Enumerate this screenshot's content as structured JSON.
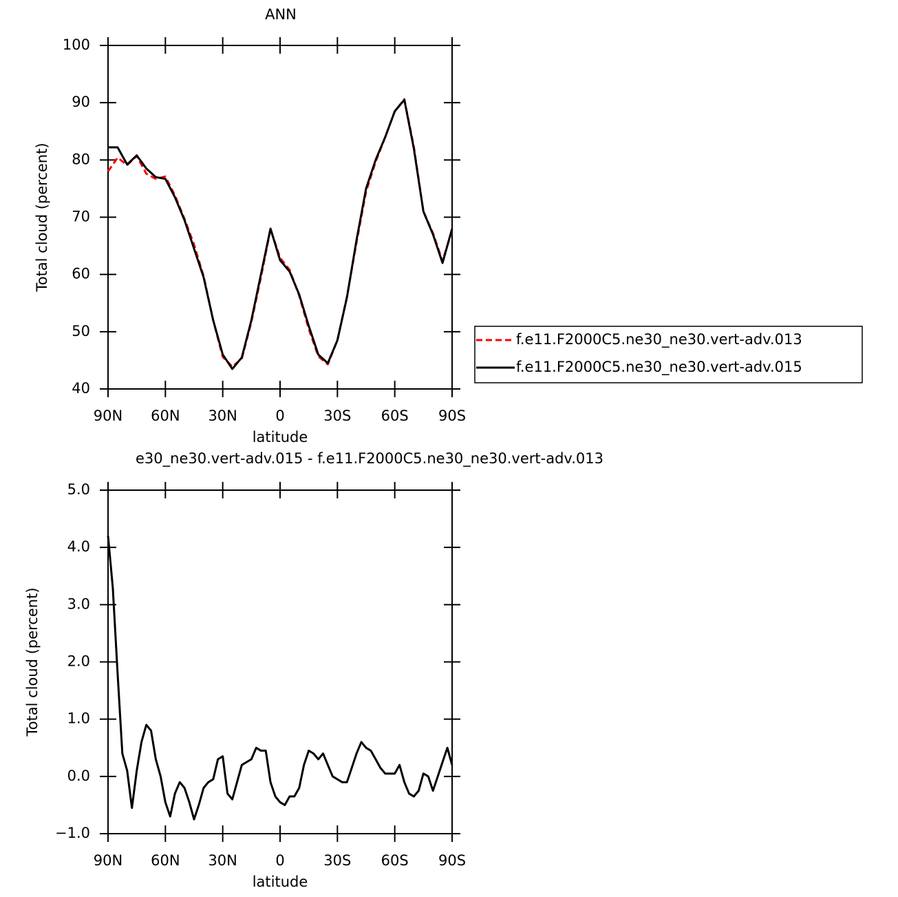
{
  "chart_data": [
    {
      "type": "line",
      "title": "ANN",
      "x_label": "latitude",
      "y_label": "Total cloud (percent)",
      "x": [
        90,
        85,
        80,
        75,
        70,
        65,
        60,
        55,
        50,
        45,
        40,
        35,
        30,
        25,
        20,
        15,
        10,
        5,
        0,
        -5,
        -10,
        -15,
        -20,
        -25,
        -30,
        -35,
        -40,
        -45,
        -50,
        -55,
        -60,
        -65,
        -70,
        -75,
        -80,
        -85,
        -90
      ],
      "series": [
        {
          "name": "f.e11.F2000C5.ne30_ne30.vert-adv.013",
          "color": "#ff0000",
          "line_style": "dashed",
          "values": [
            78,
            80.4,
            79.1,
            80.7,
            77.6,
            76.7,
            77.1,
            73.8,
            69.7,
            65.2,
            59.7,
            52,
            45.6,
            43.9,
            45.3,
            51.7,
            59.5,
            67.9,
            62.9,
            60.8,
            56.3,
            50.5,
            45.7,
            44.3,
            48.5,
            56.1,
            65.6,
            74.5,
            79.7,
            84,
            88.5,
            90.6,
            82.3,
            71,
            67.2,
            62.3,
            67.8
          ]
        },
        {
          "name": "f.e11.F2000C5.ne30_ne30.vert-adv.015",
          "color": "#000000",
          "line_style": "solid",
          "values": [
            82.2,
            82.2,
            79.2,
            80.8,
            78.5,
            77,
            76.7,
            73.5,
            69.5,
            64.5,
            59.5,
            52,
            46,
            43.5,
            45.5,
            52,
            60,
            68,
            62.5,
            60.5,
            56.5,
            51,
            46,
            44.5,
            48.5,
            56,
            66,
            75,
            80,
            84,
            88.5,
            90.5,
            82,
            71,
            67,
            62,
            68
          ]
        }
      ],
      "xlim": [
        90,
        -90
      ],
      "xticks": [
        {
          "value": 90,
          "label": "90N"
        },
        {
          "value": 60,
          "label": "60N"
        },
        {
          "value": 30,
          "label": "30N"
        },
        0,
        {
          "value": -30,
          "label": "30S"
        },
        {
          "value": -60,
          "label": "60S"
        },
        {
          "value": -90,
          "label": "90S"
        }
      ],
      "ylim": [
        40,
        100
      ],
      "yticks": [
        40,
        50,
        60,
        70,
        80,
        90,
        100
      ],
      "legend": "right"
    },
    {
      "type": "line",
      "title": "e30_ne30.vert-adv.015 - f.e11.F2000C5.ne30_ne30.vert-adv.013",
      "x_label": "latitude",
      "y_label": "Total cloud (percent)",
      "x": [
        90,
        87.5,
        85,
        82.5,
        80,
        77.5,
        75,
        72.5,
        70,
        67.5,
        65,
        62.5,
        60,
        57.5,
        55,
        52.5,
        50,
        47.5,
        45,
        42.5,
        40,
        37.5,
        35,
        32.5,
        30,
        27.5,
        25,
        22.5,
        20,
        17.5,
        15,
        12.5,
        10,
        7.5,
        5,
        2.5,
        0,
        -2.5,
        -5,
        -7.5,
        -10,
        -12.5,
        -15,
        -17.5,
        -20,
        -22.5,
        -25,
        -27.5,
        -30,
        -32.5,
        -35,
        -37.5,
        -40,
        -42.5,
        -45,
        -47.5,
        -50,
        -52.5,
        -55,
        -57.5,
        -60,
        -62.5,
        -65,
        -67.5,
        -70,
        -72.5,
        -75,
        -77.5,
        -80,
        -82.5,
        -85,
        -87.5,
        -90
      ],
      "values": [
        4.2,
        3.3,
        1.8,
        0.4,
        0.1,
        -0.55,
        0.1,
        0.6,
        0.9,
        0.8,
        0.3,
        0,
        -0.45,
        -0.7,
        -0.3,
        -0.1,
        -0.2,
        -0.45,
        -0.75,
        -0.5,
        -0.2,
        -0.1,
        -0.05,
        0.3,
        0.35,
        -0.3,
        -0.4,
        -0.1,
        0.2,
        0.25,
        0.3,
        0.5,
        0.45,
        0.45,
        -0.1,
        -0.35,
        -0.45,
        -0.5,
        -0.35,
        -0.35,
        -0.2,
        0.2,
        0.45,
        0.4,
        0.3,
        0.4,
        0.2,
        0,
        -0.05,
        -0.1,
        -0.1,
        0.15,
        0.4,
        0.6,
        0.5,
        0.45,
        0.3,
        0.15,
        0.05,
        0.05,
        0.05,
        0.2,
        -0.1,
        -0.3,
        -0.35,
        -0.25,
        0.05,
        0,
        -0.25,
        0,
        0.25,
        0.5,
        0.2
      ],
      "color": "#000000",
      "xlim": [
        90,
        -90
      ],
      "xticks": [
        {
          "value": 90,
          "label": "90N"
        },
        {
          "value": 60,
          "label": "60N"
        },
        {
          "value": 30,
          "label": "30N"
        },
        0,
        {
          "value": -30,
          "label": "30S"
        },
        {
          "value": -60,
          "label": "60S"
        },
        {
          "value": -90,
          "label": "90S"
        }
      ],
      "ylim": [
        -1,
        5
      ],
      "yticks": [
        {
          "value": -1,
          "label": "−1.0"
        },
        {
          "value": 0,
          "label": "0.0"
        },
        {
          "value": 1,
          "label": "1.0"
        },
        {
          "value": 2,
          "label": "2.0"
        },
        {
          "value": 3,
          "label": "3.0"
        },
        {
          "value": 4,
          "label": "4.0"
        },
        {
          "value": 5,
          "label": "5.0"
        }
      ]
    }
  ]
}
